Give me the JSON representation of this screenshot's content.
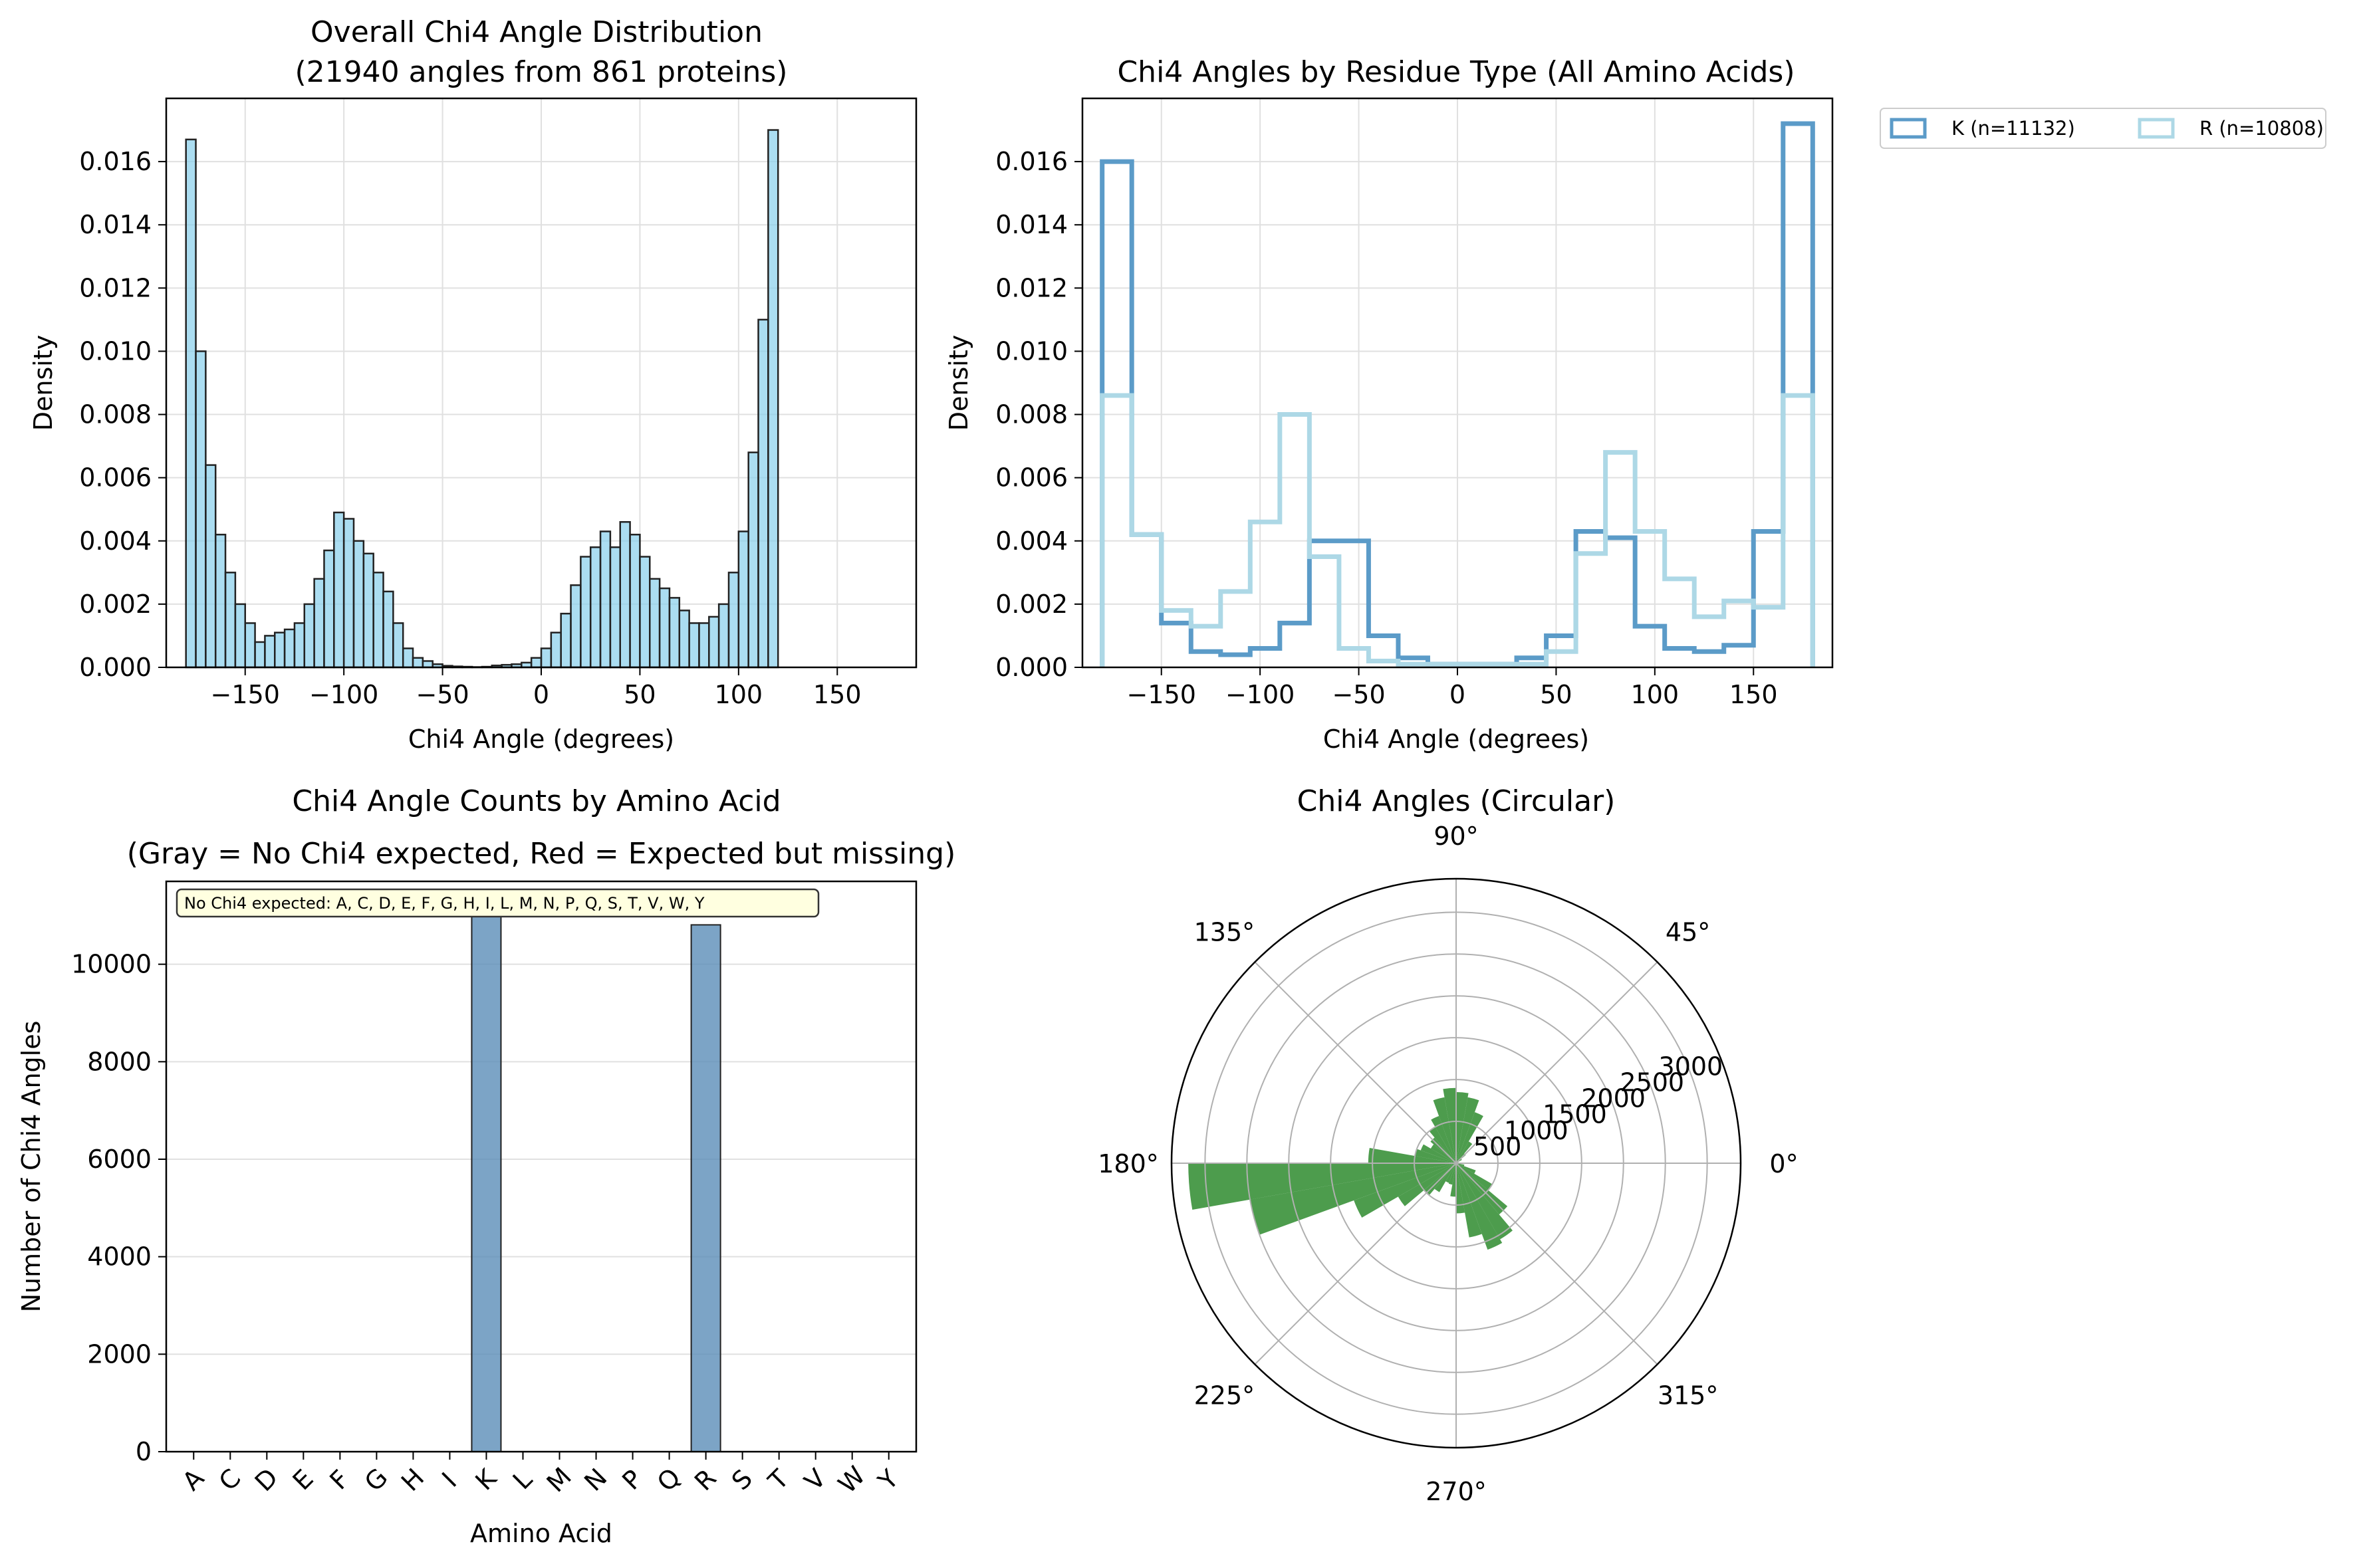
{
  "colors": {
    "hist_fill": "#87ceeb",
    "k_series": "#5b9bc8",
    "r_series": "#add8e6",
    "bar_fill": "#5b8db8",
    "polar_fill": "#2e8b2e",
    "annotation_bg": "#ffffe0"
  },
  "chart_data": [
    {
      "type": "bar",
      "title": "Overall Chi4 Angle Distribution\n(21940 angles from 861 proteins)",
      "xlabel": "Chi4 Angle (degrees)",
      "ylabel": "Density",
      "xlim": [
        -190,
        190
      ],
      "ylim": [
        0,
        0.018
      ],
      "xticks": [
        -150,
        -100,
        -50,
        0,
        50,
        100,
        150
      ],
      "yticks": [
        0.0,
        0.002,
        0.004,
        0.006,
        0.008,
        0.01,
        0.012,
        0.014,
        0.016
      ],
      "ytick_labels": [
        "0.000",
        "0.002",
        "0.004",
        "0.006",
        "0.008",
        "0.010",
        "0.012",
        "0.014",
        "0.016"
      ],
      "grid": true,
      "bin_start": -180,
      "bin_width": 5,
      "values": [
        0.0167,
        0.01,
        0.0064,
        0.0042,
        0.003,
        0.002,
        0.0014,
        0.0008,
        0.001,
        0.0011,
        0.0012,
        0.0014,
        0.002,
        0.0028,
        0.0037,
        0.0049,
        0.0047,
        0.004,
        0.0036,
        0.003,
        0.0024,
        0.0014,
        0.0006,
        0.0003,
        0.0002,
        0.0001,
        5e-05,
        3e-05,
        2e-05,
        1e-05,
        2e-05,
        6e-05,
        8e-05,
        0.0001,
        0.00015,
        0.0003,
        0.0006,
        0.0011,
        0.0017,
        0.0026,
        0.0035,
        0.0038,
        0.0043,
        0.0038,
        0.0046,
        0.0042,
        0.0035,
        0.0028,
        0.0025,
        0.0022,
        0.0018,
        0.0014,
        0.0014,
        0.0016,
        0.002,
        0.003,
        0.0043,
        0.0068,
        0.011,
        0.017
      ]
    },
    {
      "type": "line",
      "title": "Chi4 Angles by Residue Type (All Amino Acids)",
      "xlabel": "Chi4 Angle (degrees)",
      "ylabel": "Density",
      "xlim": [
        -190,
        190
      ],
      "ylim": [
        0,
        0.018
      ],
      "xticks": [
        -150,
        -100,
        -50,
        0,
        50,
        100,
        150
      ],
      "yticks": [
        0.0,
        0.002,
        0.004,
        0.006,
        0.008,
        0.01,
        0.012,
        0.014,
        0.016
      ],
      "ytick_labels": [
        "0.000",
        "0.002",
        "0.004",
        "0.006",
        "0.008",
        "0.010",
        "0.012",
        "0.014",
        "0.016"
      ],
      "grid": true,
      "legend": "outside top-right",
      "bin_start": -180,
      "bin_width": 15,
      "series": [
        {
          "name": "K (n=11132)",
          "values": [
            0.016,
            0.0042,
            0.0014,
            0.0005,
            0.0004,
            0.0006,
            0.0014,
            0.004,
            0.004,
            0.001,
            0.0003,
            0.0001,
            0.0001,
            0.0001,
            0.0003,
            0.001,
            0.0043,
            0.0041,
            0.0013,
            0.0006,
            0.0005,
            0.0007,
            0.0043,
            0.0172
          ]
        },
        {
          "name": "R (n=10808)",
          "values": [
            0.0086,
            0.0042,
            0.0018,
            0.0013,
            0.0024,
            0.0046,
            0.008,
            0.0035,
            0.0006,
            0.0002,
            0.0001,
            0.0001,
            0.0001,
            0.0001,
            0.0001,
            0.0005,
            0.0036,
            0.0068,
            0.0043,
            0.0028,
            0.0016,
            0.0021,
            0.0019,
            0.0086
          ]
        }
      ]
    },
    {
      "type": "bar",
      "title": "Chi4 Angle Counts by Amino Acid\n(Gray = No Chi4 expected, Red = Expected but missing)",
      "xlabel": "Amino Acid",
      "ylabel": "Number of Chi4 Angles",
      "ylim": [
        0,
        11700
      ],
      "yticks": [
        0,
        2000,
        4000,
        6000,
        8000,
        10000
      ],
      "grid": true,
      "categories": [
        "A",
        "C",
        "D",
        "E",
        "F",
        "G",
        "H",
        "I",
        "K",
        "L",
        "M",
        "N",
        "P",
        "Q",
        "R",
        "S",
        "T",
        "V",
        "W",
        "Y"
      ],
      "values": [
        0,
        0,
        0,
        0,
        0,
        0,
        0,
        0,
        11132,
        0,
        0,
        0,
        0,
        0,
        10808,
        0,
        0,
        0,
        0,
        0
      ],
      "annotation": "No Chi4 expected: A, C, D, E, F, G, H, I, L, M, N, P, Q, S, T, V, W, Y"
    },
    {
      "type": "bar",
      "polar": true,
      "title": "Chi4 Angles (Circular)",
      "rmax": 3400,
      "rticks": [
        500,
        1000,
        1500,
        2000,
        2500,
        3000
      ],
      "angle_ticks": [
        0,
        45,
        90,
        135,
        180,
        225,
        270,
        315
      ],
      "angle_tick_labels": [
        "0°",
        "45°",
        "90°",
        "135°",
        "180°",
        "225°",
        "270°",
        "315°"
      ],
      "grid": true,
      "bin_start": -180,
      "bin_width": 10,
      "values": [
        3200,
        2500,
        1300,
        800,
        500,
        400,
        250,
        260,
        400,
        600,
        900,
        1100,
        1050,
        800,
        500,
        250,
        100,
        40,
        20,
        15,
        30,
        80,
        150,
        300,
        650,
        800,
        850,
        900,
        800,
        600,
        500,
        400,
        350,
        450,
        500,
        1050
      ]
    }
  ]
}
